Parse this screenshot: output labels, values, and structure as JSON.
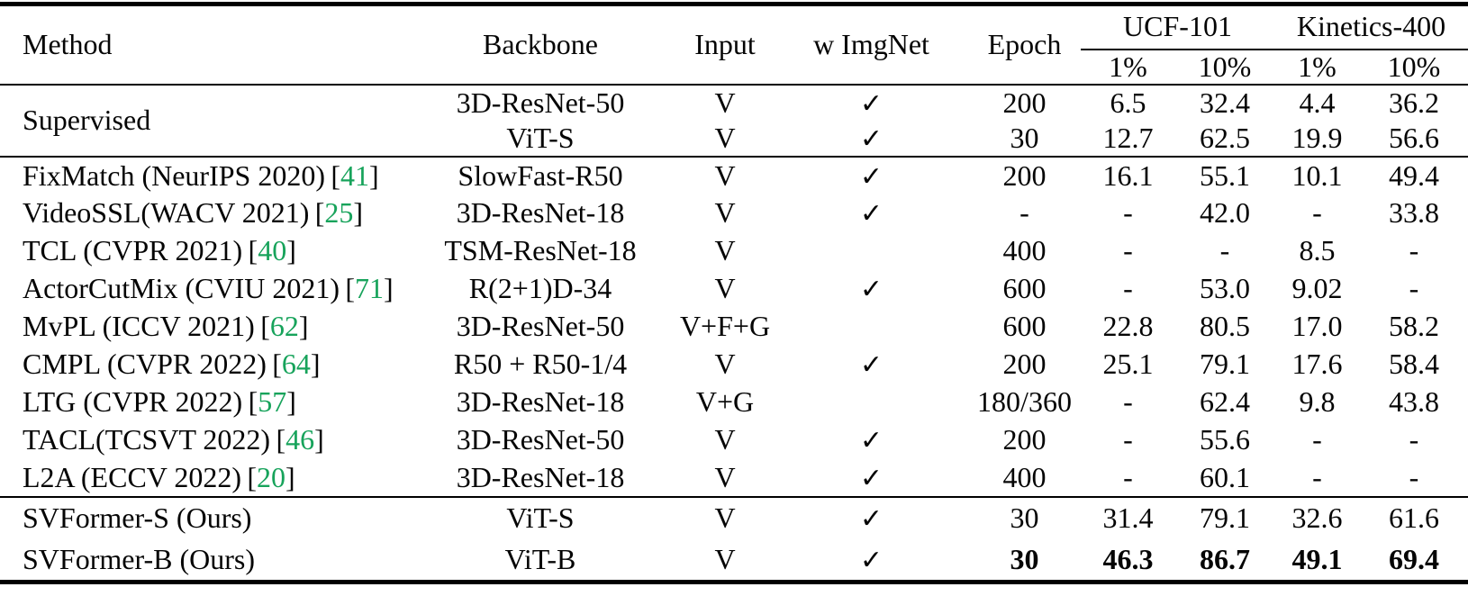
{
  "glyphs": {
    "checkmark": "✓",
    "bracket_open": "[",
    "bracket_close": "]"
  },
  "colors": {
    "citation_green": "#17a35b",
    "text": "#050505",
    "background": "#ffffff"
  },
  "header": {
    "method": "Method",
    "backbone": "Backbone",
    "input": "Input",
    "w_imgnet": "w ImgNet",
    "epoch": "Epoch",
    "group_ucf": "UCF-101",
    "group_kinetics": "Kinetics-400",
    "sub_ucf_1": "1%",
    "sub_ucf_10": "10%",
    "sub_k_1": "1%",
    "sub_k_10": "10%"
  },
  "rows": [
    {
      "method": "Supervised",
      "backbone": "3D-ResNet-50",
      "input": "V",
      "imgnet": true,
      "epoch": "200",
      "vals": [
        "6.5",
        "32.4",
        "4.4",
        "36.2"
      ]
    },
    {
      "backbone": "ViT-S",
      "input": "V",
      "imgnet": true,
      "epoch": "30",
      "vals": [
        "12.7",
        "62.5",
        "19.9",
        "56.6"
      ]
    },
    {
      "method": "FixMatch (NeurIPS 2020)",
      "cite": "41",
      "backbone": "SlowFast-R50",
      "input": "V",
      "imgnet": true,
      "epoch": "200",
      "vals": [
        "16.1",
        "55.1",
        "10.1",
        "49.4"
      ]
    },
    {
      "method": "VideoSSL(WACV 2021)",
      "cite": "25",
      "backbone": "3D-ResNet-18",
      "input": "V",
      "imgnet": true,
      "epoch": "-",
      "vals": [
        "-",
        "42.0",
        "-",
        "33.8"
      ]
    },
    {
      "method": "TCL (CVPR 2021)",
      "cite": "40",
      "backbone": "TSM-ResNet-18",
      "input": "V",
      "imgnet": false,
      "epoch": "400",
      "vals": [
        "-",
        "-",
        "8.5",
        "-"
      ]
    },
    {
      "method": "ActorCutMix (CVIU 2021)",
      "cite": "71",
      "backbone": "R(2+1)D-34",
      "input": "V",
      "imgnet": true,
      "epoch": "600",
      "vals": [
        "-",
        "53.0",
        "9.02",
        "-"
      ]
    },
    {
      "method": "MvPL (ICCV 2021)",
      "cite": "62",
      "backbone": "3D-ResNet-50",
      "input": "V+F+G",
      "imgnet": false,
      "epoch": "600",
      "vals": [
        "22.8",
        "80.5",
        "17.0",
        "58.2"
      ]
    },
    {
      "method": "CMPL (CVPR 2022)",
      "cite": "64",
      "backbone": "R50 + R50-1/4",
      "input": "V",
      "imgnet": true,
      "epoch": "200",
      "vals": [
        "25.1",
        "79.1",
        "17.6",
        "58.4"
      ]
    },
    {
      "method": "LTG (CVPR 2022)",
      "cite": "57",
      "backbone": "3D-ResNet-18",
      "input": "V+G",
      "imgnet": false,
      "epoch": "180/360",
      "vals": [
        "-",
        "62.4",
        "9.8",
        "43.8"
      ]
    },
    {
      "method": "TACL(TCSVT 2022)",
      "cite": "46",
      "backbone": "3D-ResNet-50",
      "input": "V",
      "imgnet": true,
      "epoch": "200",
      "vals": [
        "-",
        "55.6",
        "-",
        "-"
      ]
    },
    {
      "method": "L2A (ECCV 2022)",
      "cite": "20",
      "backbone": "3D-ResNet-18",
      "input": "V",
      "imgnet": true,
      "epoch": "400",
      "vals": [
        "-",
        "60.1",
        "-",
        "-"
      ]
    },
    {
      "method": "SVFormer-S (Ours)",
      "backbone": "ViT-S",
      "input": "V",
      "imgnet": true,
      "epoch": "30",
      "vals": [
        "31.4",
        "79.1",
        "32.6",
        "61.6"
      ]
    },
    {
      "method": "SVFormer-B (Ours)",
      "backbone": "ViT-B",
      "input": "V",
      "imgnet": true,
      "epoch": "30",
      "vals": [
        "46.3",
        "86.7",
        "49.1",
        "69.4"
      ],
      "bold": true
    }
  ]
}
